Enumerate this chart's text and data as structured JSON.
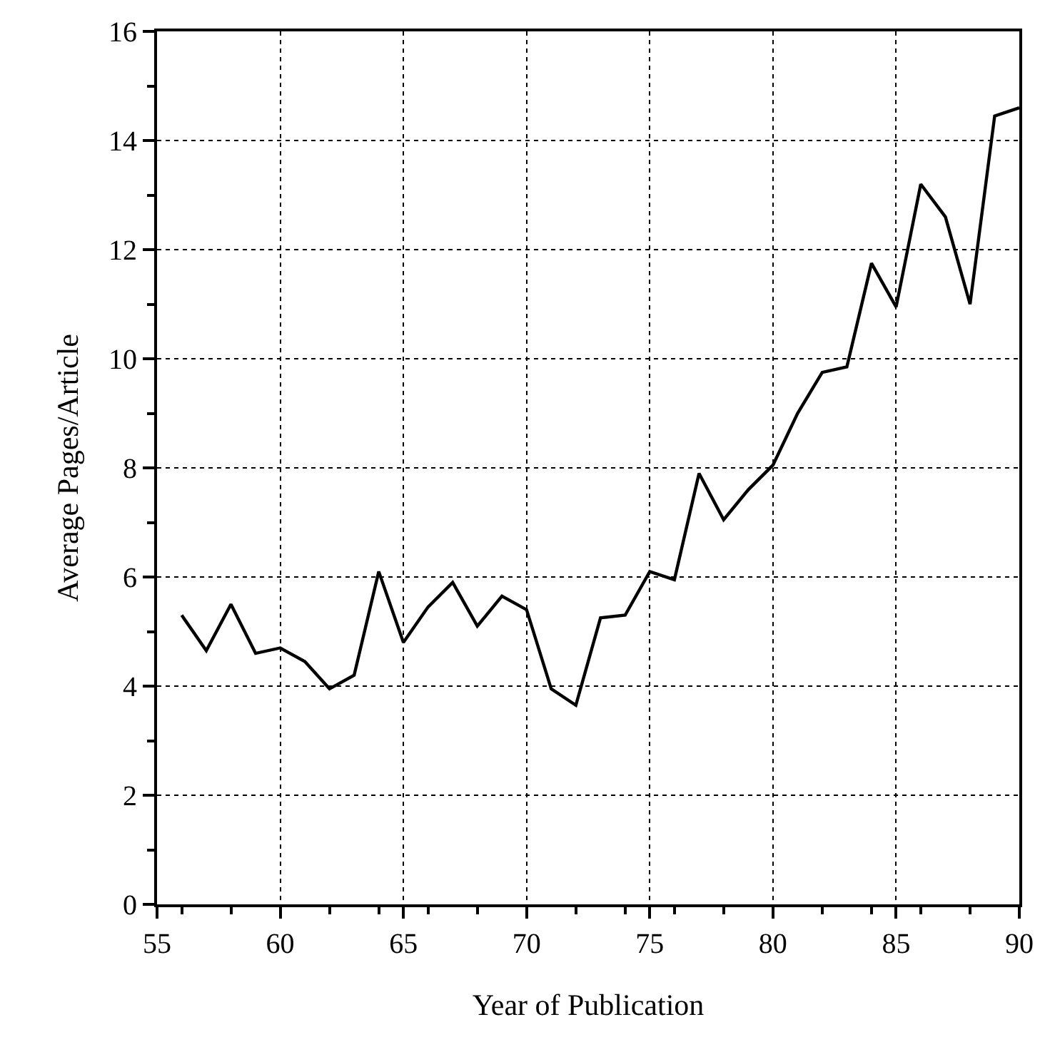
{
  "chart_data": {
    "type": "line",
    "xlabel": "Year of Publication",
    "ylabel": "Average Pages/Article",
    "x": [
      56,
      57,
      58,
      59,
      60,
      61,
      62,
      63,
      64,
      65,
      66,
      67,
      68,
      69,
      70,
      71,
      72,
      73,
      74,
      75,
      76,
      77,
      78,
      79,
      80,
      81,
      82,
      83,
      84,
      85,
      86,
      87,
      88,
      89,
      90
    ],
    "values": [
      5.3,
      4.65,
      5.5,
      4.6,
      4.7,
      4.45,
      3.95,
      4.2,
      6.1,
      4.8,
      5.45,
      5.9,
      5.1,
      5.65,
      5.4,
      3.95,
      3.65,
      5.25,
      5.3,
      6.1,
      5.95,
      7.9,
      7.05,
      7.6,
      8.05,
      9.0,
      9.75,
      9.85,
      11.75,
      10.95,
      13.2,
      12.6,
      11.0,
      14.45,
      14.6
    ],
    "color": "#000000",
    "xlim": [
      55,
      90
    ],
    "xticks": [
      55,
      60,
      65,
      70,
      75,
      80,
      85,
      90
    ],
    "ylim": [
      0,
      16
    ],
    "yticks": [
      0,
      2,
      4,
      6,
      8,
      10,
      12,
      14,
      16
    ],
    "grid": true,
    "line_style": "solid",
    "marker": "none",
    "legend": false
  }
}
